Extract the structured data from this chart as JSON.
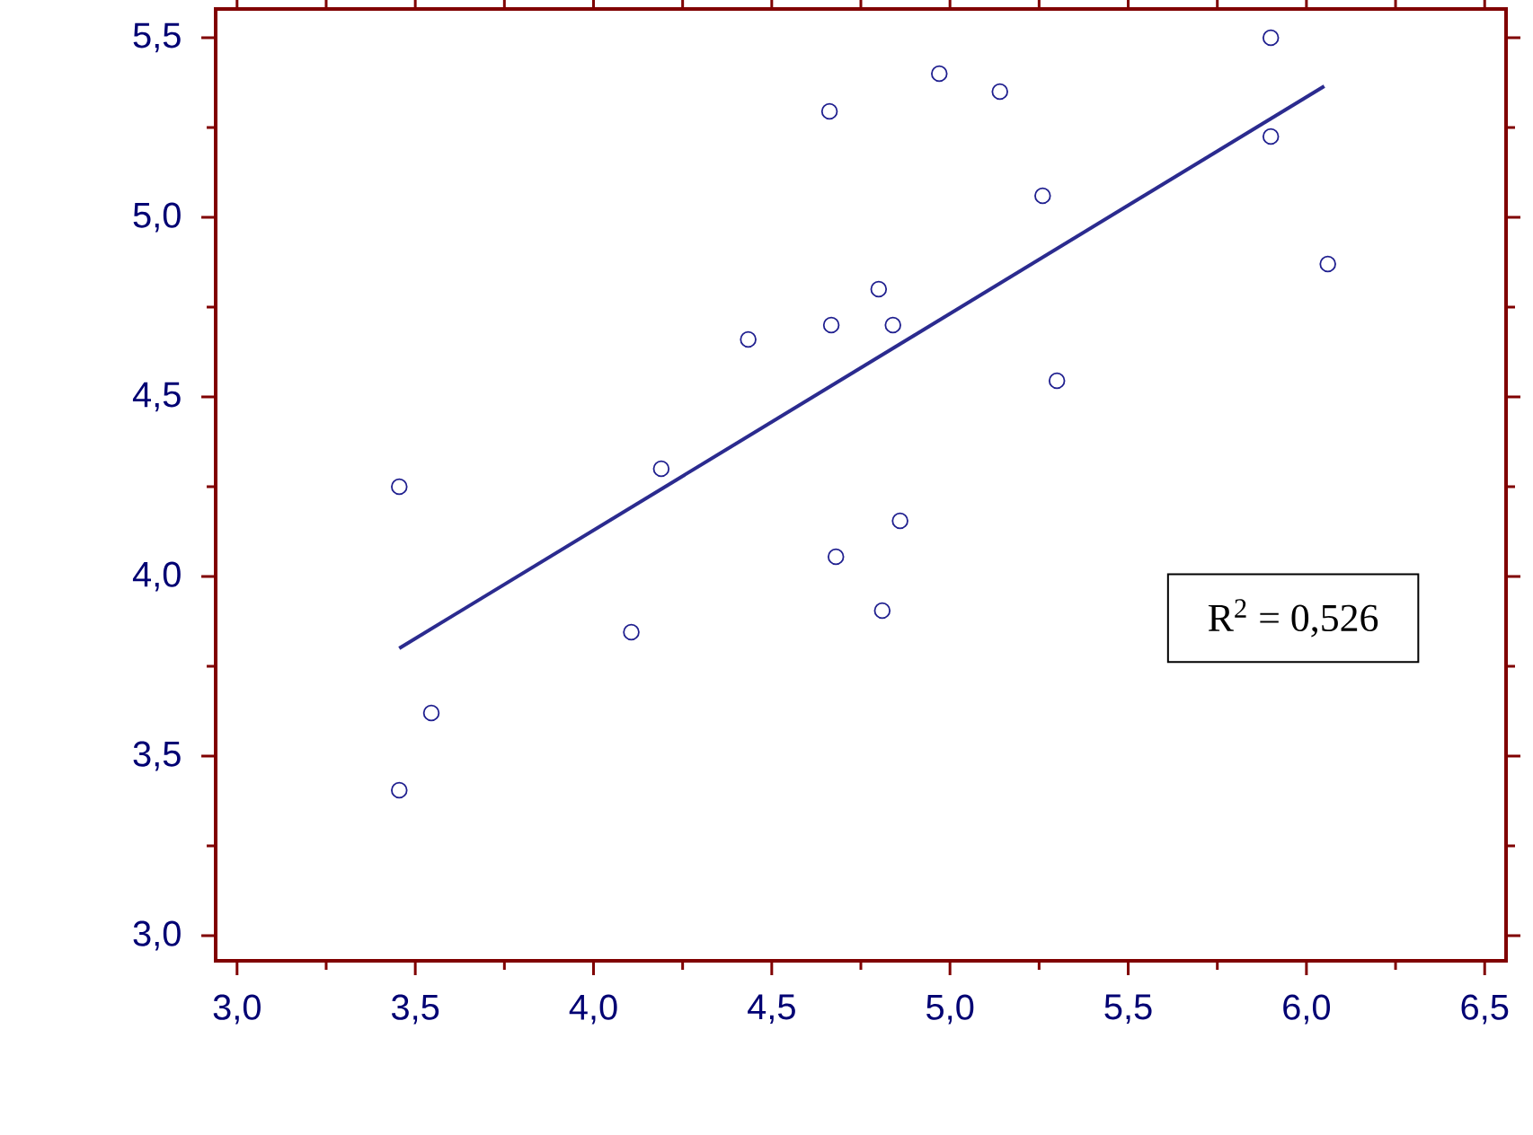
{
  "chart_data": {
    "type": "scatter",
    "xlim": [
      2.94,
      6.56
    ],
    "ylim": [
      2.93,
      5.58
    ],
    "xticks": [
      {
        "value": 3.0,
        "label": "3,0"
      },
      {
        "value": 3.5,
        "label": "3,5"
      },
      {
        "value": 4.0,
        "label": "4,0"
      },
      {
        "value": 4.5,
        "label": "4,5"
      },
      {
        "value": 5.0,
        "label": "5,0"
      },
      {
        "value": 5.5,
        "label": "5,5"
      },
      {
        "value": 6.0,
        "label": "6,0"
      },
      {
        "value": 6.5,
        "label": "6,5"
      }
    ],
    "yticks": [
      {
        "value": 3.0,
        "label": "3,0"
      },
      {
        "value": 3.5,
        "label": "3,5"
      },
      {
        "value": 4.0,
        "label": "4,0"
      },
      {
        "value": 4.5,
        "label": "4,5"
      },
      {
        "value": 5.0,
        "label": "5,0"
      },
      {
        "value": 5.5,
        "label": "5,5"
      }
    ],
    "grid": false,
    "annotations": [
      "R$^{2}$ = 0,526"
    ],
    "series": [
      {
        "marker": "circle",
        "color": "#1f1f8f",
        "x": [
          3.455,
          3.545,
          3.455,
          4.106,
          4.19,
          4.434,
          4.662,
          4.667,
          4.68,
          4.8,
          4.81,
          4.84,
          4.86,
          4.97,
          5.14,
          5.26,
          5.3,
          5.9,
          5.9,
          6.06
        ],
        "values": [
          4.25,
          3.62,
          3.405,
          3.845,
          4.3,
          4.66,
          5.295,
          4.7,
          4.055,
          4.8,
          3.905,
          4.7,
          4.155,
          5.4,
          5.35,
          5.06,
          4.545,
          5.5,
          5.225,
          4.87
        ]
      },
      {
        "type": "line",
        "marker": "none",
        "line_style": "solid",
        "color": "#2b2b8f",
        "x": [
          3.455,
          6.05
        ],
        "values": [
          3.8,
          5.365
        ]
      }
    ]
  }
}
